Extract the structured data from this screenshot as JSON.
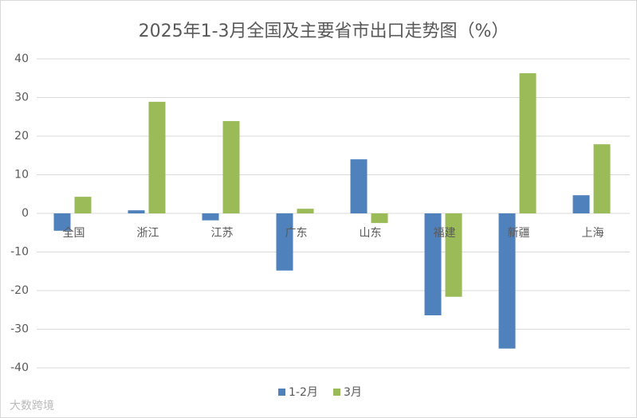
{
  "chart_data": {
    "type": "bar",
    "title": "2025年1-3月全国及主要省市出口走势图（%）",
    "categories": [
      "全国",
      "浙江",
      "江苏",
      "广东",
      "山东",
      "福建",
      "新疆",
      "上海"
    ],
    "series": [
      {
        "name": "1-2月",
        "color": "#4f81bd",
        "values": [
          -4.5,
          0.8,
          -1.8,
          -14.8,
          14.0,
          -26.4,
          -35.0,
          4.7
        ]
      },
      {
        "name": "3月",
        "color": "#9bbb59",
        "values": [
          4.3,
          28.9,
          23.9,
          1.2,
          -2.5,
          -21.6,
          36.3,
          17.9
        ]
      }
    ],
    "ylim": [
      -40,
      40
    ],
    "yticks": [
      -40,
      -30,
      -20,
      -10,
      0,
      10,
      20,
      30,
      40
    ],
    "grid": true,
    "legend": "bottom",
    "watermark": "大数跨境"
  }
}
